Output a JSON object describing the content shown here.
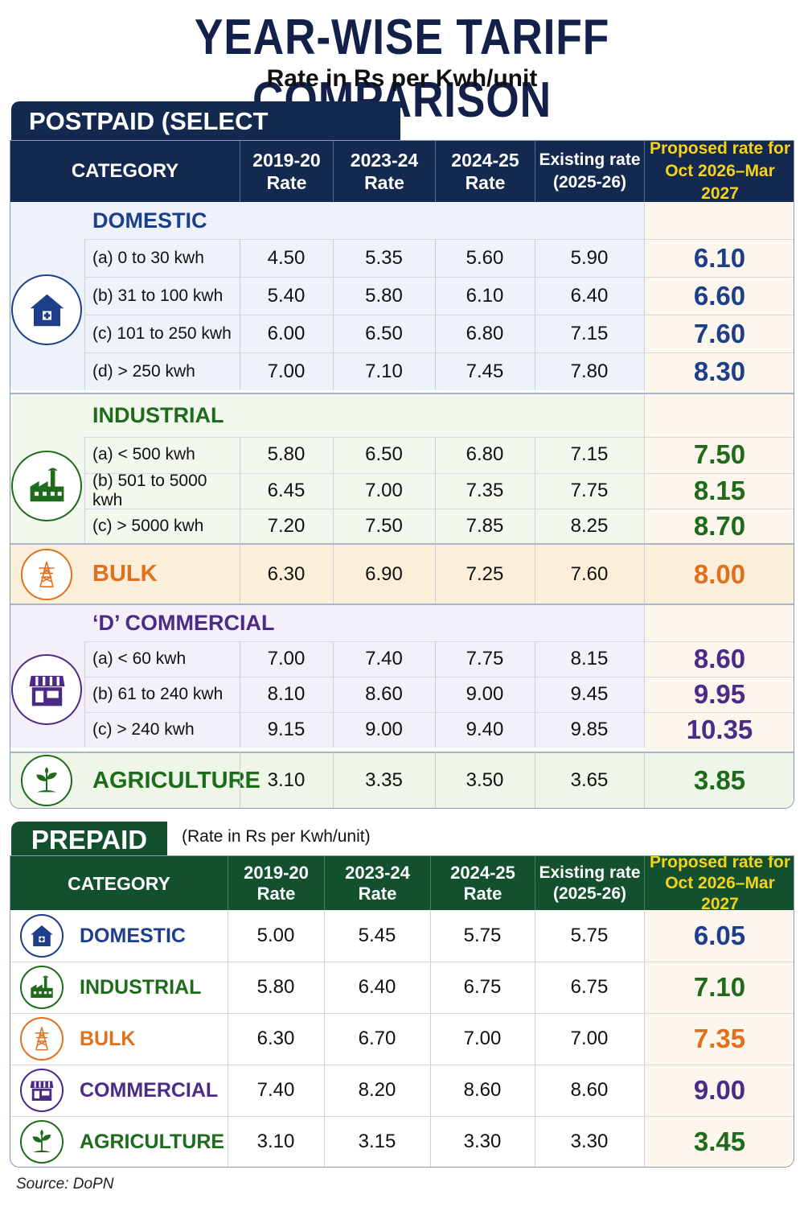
{
  "title": "YEAR-WISE TARIFF COMPARISON",
  "subtitle": "Rate in Rs per Kwh/unit",
  "colors": {
    "navy": "#13294f",
    "green_header": "#13512e",
    "domestic": "#1d3f8a",
    "industrial": "#1f6b1c",
    "bulk": "#e0701e",
    "commercial": "#4b2b86",
    "agriculture": "#1f6b1c",
    "proposed_header_text": "#f5d21b"
  },
  "postpaid": {
    "label": "POSTPAID (SELECT CATEGORIES)",
    "headers": [
      "CATEGORY",
      "2019-20\nRate",
      "2023-24\nRate",
      "2024-25\nRate",
      "Existing rate\n(2025-26)",
      "Proposed rate for\nOct 2026–Mar 2027"
    ],
    "sections": [
      {
        "name": "DOMESTIC",
        "icon": "house-icon",
        "color": "#1d3f8a",
        "rows": [
          {
            "label": "(a) 0 to 30 kwh",
            "values": [
              "4.50",
              "5.35",
              "5.60",
              "5.90",
              "6.10"
            ]
          },
          {
            "label": "(b) 31 to 100 kwh",
            "values": [
              "5.40",
              "5.80",
              "6.10",
              "6.40",
              "6.60"
            ]
          },
          {
            "label": "(c) 101 to 250 kwh",
            "values": [
              "6.00",
              "6.50",
              "6.80",
              "7.15",
              "7.60"
            ]
          },
          {
            "label": "(d) > 250 kwh",
            "values": [
              "7.00",
              "7.10",
              "7.45",
              "7.80",
              "8.30"
            ]
          }
        ]
      },
      {
        "name": "INDUSTRIAL",
        "icon": "factory-icon",
        "color": "#1f6b1c",
        "rows": [
          {
            "label": "(a) < 500 kwh",
            "values": [
              "5.80",
              "6.50",
              "6.80",
              "7.15",
              "7.50"
            ]
          },
          {
            "label": "(b) 501 to 5000 kwh",
            "values": [
              "6.45",
              "7.00",
              "7.35",
              "7.75",
              "8.15"
            ]
          },
          {
            "label": "(c) > 5000 kwh",
            "values": [
              "7.20",
              "7.50",
              "7.85",
              "8.25",
              "8.70"
            ]
          }
        ]
      },
      {
        "name": "BULK",
        "icon": "power-tower-icon",
        "color": "#e0701e",
        "values": [
          "6.30",
          "6.90",
          "7.25",
          "7.60",
          "8.00"
        ]
      },
      {
        "name": "‘D’ COMMERCIAL",
        "icon": "shop-icon",
        "color": "#4b2b86",
        "rows": [
          {
            "label": "(a) < 60 kwh",
            "values": [
              "7.00",
              "7.40",
              "7.75",
              "8.15",
              "8.60"
            ]
          },
          {
            "label": "(b) 61 to 240 kwh",
            "values": [
              "8.10",
              "8.60",
              "9.00",
              "9.45",
              "9.95"
            ]
          },
          {
            "label": "(c) > 240 kwh",
            "values": [
              "9.15",
              "9.00",
              "9.40",
              "9.85",
              "10.35"
            ]
          }
        ]
      },
      {
        "name": "AGRICULTURE",
        "icon": "plant-icon",
        "color": "#1f6b1c",
        "values": [
          "3.10",
          "3.35",
          "3.50",
          "3.65",
          "3.85"
        ]
      }
    ]
  },
  "prepaid": {
    "label": "PREPAID",
    "note": "(Rate in Rs per Kwh/unit)",
    "headers": [
      "CATEGORY",
      "2019-20\nRate",
      "2023-24\nRate",
      "2024-25\nRate",
      "Existing rate\n(2025-26)",
      "Proposed rate for\nOct 2026–Mar 2027"
    ],
    "rows": [
      {
        "name": "DOMESTIC",
        "icon": "house-icon",
        "color": "#1d3f8a",
        "values": [
          "5.00",
          "5.45",
          "5.75",
          "5.75",
          "6.05"
        ]
      },
      {
        "name": "INDUSTRIAL",
        "icon": "factory-icon",
        "color": "#1f6b1c",
        "values": [
          "5.80",
          "6.40",
          "6.75",
          "6.75",
          "7.10"
        ]
      },
      {
        "name": "BULK",
        "icon": "power-tower-icon",
        "color": "#e0701e",
        "values": [
          "6.30",
          "6.70",
          "7.00",
          "7.00",
          "7.35"
        ]
      },
      {
        "name": "COMMERCIAL",
        "icon": "shop-icon",
        "color": "#4b2b86",
        "values": [
          "7.40",
          "8.20",
          "8.60",
          "8.60",
          "9.00"
        ]
      },
      {
        "name": "AGRICULTURE",
        "icon": "plant-icon",
        "color": "#1f6b1c",
        "values": [
          "3.10",
          "3.15",
          "3.30",
          "3.30",
          "3.45"
        ]
      }
    ]
  },
  "source": "Source: DoPN",
  "chart_data": [
    {
      "type": "table",
      "title": "POSTPAID (SELECT CATEGORIES)",
      "columns": [
        "CATEGORY",
        "2019-20 Rate",
        "2023-24 Rate",
        "2024-25 Rate",
        "Existing rate (2025-26)",
        "Proposed rate for Oct 2026–Mar 2027"
      ],
      "rows": [
        [
          "DOMESTIC (a) 0 to 30 kwh",
          4.5,
          5.35,
          5.6,
          5.9,
          6.1
        ],
        [
          "DOMESTIC (b) 31 to 100 kwh",
          5.4,
          5.8,
          6.1,
          6.4,
          6.6
        ],
        [
          "DOMESTIC (c) 101 to 250 kwh",
          6.0,
          6.5,
          6.8,
          7.15,
          7.6
        ],
        [
          "DOMESTIC (d) > 250 kwh",
          7.0,
          7.1,
          7.45,
          7.8,
          8.3
        ],
        [
          "INDUSTRIAL (a) < 500 kwh",
          5.8,
          6.5,
          6.8,
          7.15,
          7.5
        ],
        [
          "INDUSTRIAL (b) 501 to 5000 kwh",
          6.45,
          7.0,
          7.35,
          7.75,
          8.15
        ],
        [
          "INDUSTRIAL (c) > 5000 kwh",
          7.2,
          7.5,
          7.85,
          8.25,
          8.7
        ],
        [
          "BULK",
          6.3,
          6.9,
          7.25,
          7.6,
          8.0
        ],
        [
          "‘D’ COMMERCIAL (a) < 60 kwh",
          7.0,
          7.4,
          7.75,
          8.15,
          8.6
        ],
        [
          "‘D’ COMMERCIAL (b) 61 to 240 kwh",
          8.1,
          8.6,
          9.0,
          9.45,
          9.95
        ],
        [
          "‘D’ COMMERCIAL (c) > 240 kwh",
          9.15,
          9.0,
          9.4,
          9.85,
          10.35
        ],
        [
          "AGRICULTURE",
          3.1,
          3.35,
          3.5,
          3.65,
          3.85
        ]
      ]
    },
    {
      "type": "table",
      "title": "PREPAID",
      "columns": [
        "CATEGORY",
        "2019-20 Rate",
        "2023-24 Rate",
        "2024-25 Rate",
        "Existing rate (2025-26)",
        "Proposed rate for Oct 2026–Mar 2027"
      ],
      "rows": [
        [
          "DOMESTIC",
          5.0,
          5.45,
          5.75,
          5.75,
          6.05
        ],
        [
          "INDUSTRIAL",
          5.8,
          6.4,
          6.75,
          6.75,
          7.1
        ],
        [
          "BULK",
          6.3,
          6.7,
          7.0,
          7.0,
          7.35
        ],
        [
          "COMMERCIAL",
          7.4,
          8.2,
          8.6,
          8.6,
          9.0
        ],
        [
          "AGRICULTURE",
          3.1,
          3.15,
          3.3,
          3.3,
          3.45
        ]
      ]
    }
  ]
}
